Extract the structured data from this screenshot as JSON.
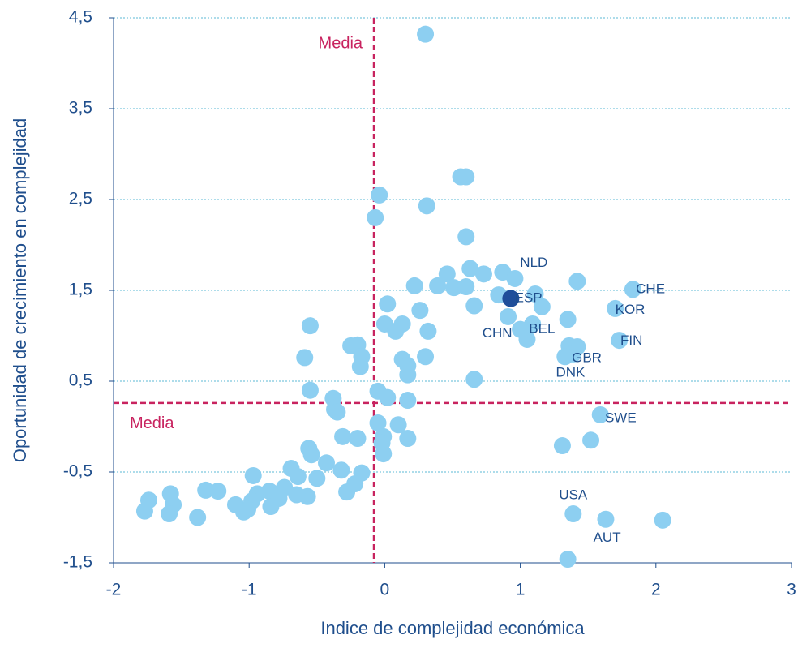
{
  "chart_data": {
    "type": "scatter",
    "xlabel": "Indice de complejidad económica",
    "ylabel": "Oportunidad de crecimiento en complejidad",
    "xlim": [
      -2,
      3
    ],
    "ylim": [
      -1.5,
      4.5
    ],
    "xticks": [
      -2,
      -1,
      0,
      1,
      2,
      3
    ],
    "yticks": [
      {
        "value": -1.5,
        "label": "-1,5"
      },
      {
        "value": -0.5,
        "label": "-0,5"
      },
      {
        "value": 0.5,
        "label": "0,5"
      },
      {
        "value": 1.5,
        "label": "1,5"
      },
      {
        "value": 2.5,
        "label": "2,5"
      },
      {
        "value": 3.5,
        "label": "3,5"
      },
      {
        "value": 4.5,
        "label": "4,5"
      }
    ],
    "grid": true,
    "mean_x": -0.08,
    "mean_y": 0.26,
    "mean_x_label": "Media",
    "mean_y_label": "Media",
    "series": [
      {
        "color": "#8dcff1",
        "x": [
          0.3,
          0.56,
          0.6,
          -0.04,
          0.31,
          -0.07,
          0.6,
          0.46,
          0.63,
          0.73,
          0.87,
          0.96,
          0.22,
          0.39,
          0.51,
          0.6,
          0.84,
          1.11,
          1.42,
          1.83,
          0.66,
          1.16,
          1.7,
          0.02,
          0.26,
          0.91,
          1.35,
          1.09,
          0.0,
          0.13,
          0.08,
          0.32,
          -0.55,
          1.0,
          1.05,
          1.36,
          1.73,
          1.42,
          1.39,
          1.33,
          -0.25,
          -0.2,
          -0.17,
          -0.18,
          -0.59,
          0.13,
          0.17,
          0.17,
          0.3,
          0.66,
          -0.55,
          -0.38,
          -0.37,
          -0.05,
          0.02,
          0.17,
          -0.35,
          -0.05,
          0.1,
          -0.01,
          -0.02,
          0.17,
          -0.31,
          -0.2,
          -0.01,
          1.59,
          1.52,
          1.31,
          -0.56,
          -0.54,
          -0.43,
          -0.69,
          -0.32,
          -0.17,
          -0.5,
          -0.64,
          -0.97,
          -0.22,
          -0.28,
          -0.74,
          -0.85,
          -1.32,
          -1.23,
          -1.58,
          -0.94,
          -0.57,
          -0.65,
          -0.78,
          -1.74,
          -0.98,
          -1.1,
          -1.56,
          -0.84,
          -1.01,
          -1.77,
          -1.04,
          -1.59,
          -1.38,
          1.39,
          1.63,
          2.05,
          1.35
        ],
        "values": [
          4.32,
          2.75,
          2.75,
          2.55,
          2.43,
          2.3,
          2.09,
          1.68,
          1.74,
          1.68,
          1.7,
          1.63,
          1.55,
          1.55,
          1.53,
          1.54,
          1.45,
          1.46,
          1.6,
          1.51,
          1.33,
          1.32,
          1.3,
          1.35,
          1.28,
          1.21,
          1.18,
          1.13,
          1.13,
          1.13,
          1.05,
          1.05,
          1.11,
          1.07,
          0.96,
          0.89,
          0.95,
          0.88,
          0.8,
          0.77,
          0.89,
          0.9,
          0.77,
          0.66,
          0.76,
          0.74,
          0.67,
          0.57,
          0.77,
          0.52,
          0.4,
          0.31,
          0.19,
          0.39,
          0.32,
          0.29,
          0.16,
          0.04,
          0.02,
          -0.11,
          -0.18,
          -0.13,
          -0.11,
          -0.13,
          -0.3,
          0.13,
          -0.15,
          -0.21,
          -0.24,
          -0.31,
          -0.4,
          -0.46,
          -0.48,
          -0.51,
          -0.57,
          -0.55,
          -0.54,
          -0.63,
          -0.72,
          -0.67,
          -0.71,
          -0.7,
          -0.71,
          -0.74,
          -0.74,
          -0.77,
          -0.75,
          -0.79,
          -0.81,
          -0.82,
          -0.86,
          -0.86,
          -0.88,
          -0.91,
          -0.93,
          -0.94,
          -0.96,
          -1.0,
          -0.96,
          -1.02,
          -1.03,
          -1.46
        ]
      },
      {
        "color": "#1f4e9a",
        "x": [
          0.93
        ],
        "values": [
          1.41
        ]
      }
    ],
    "annotations": [
      {
        "text": "NLD",
        "x": 1.1,
        "y": 1.8
      },
      {
        "text": "ESP",
        "x": 1.06,
        "y": 1.41
      },
      {
        "text": "CHN",
        "x": 0.83,
        "y": 1.02
      },
      {
        "text": "BEL",
        "x": 1.16,
        "y": 1.07
      },
      {
        "text": "CHE",
        "x": 1.96,
        "y": 1.51
      },
      {
        "text": "KOR",
        "x": 1.81,
        "y": 1.28
      },
      {
        "text": "FIN",
        "x": 1.82,
        "y": 0.94
      },
      {
        "text": "GBR",
        "x": 1.49,
        "y": 0.75
      },
      {
        "text": "DNK",
        "x": 1.37,
        "y": 0.59
      },
      {
        "text": "SWE",
        "x": 1.74,
        "y": 0.09
      },
      {
        "text": "USA",
        "x": 1.39,
        "y": -0.76
      },
      {
        "text": "AUT",
        "x": 1.64,
        "y": -1.23
      }
    ]
  }
}
